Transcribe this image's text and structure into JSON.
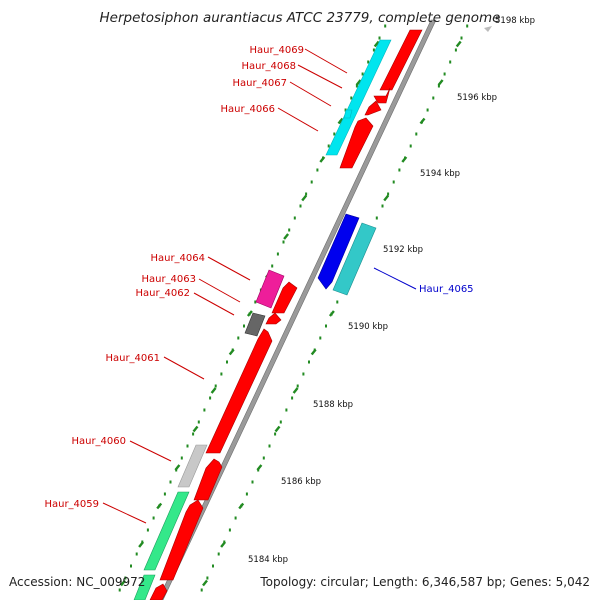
{
  "title": "Herpetosiphon aurantiacus ATCC 23779, complete genome",
  "accession": "Accession: NC_009972",
  "topology": "Topology: circular; Length: 6,346,587 bp; Genes: 5,042",
  "colors": {
    "backbone": "#999999",
    "forward_gene": "#ff0000",
    "reverse_gene": "#1a1aff",
    "tick": "#228b22",
    "label_forward": "#cc0000",
    "label_reverse": "#0000cc"
  },
  "scale_labels": [
    "5184 kbp",
    "5186 kbp",
    "5188 kbp",
    "5190 kbp",
    "5192 kbp",
    "5194 kbp",
    "5196 kbp",
    "5198 kbp"
  ],
  "gene_labels": [
    {
      "text": "Haur_4069",
      "color": "#cc0000"
    },
    {
      "text": "Haur_4068",
      "color": "#cc0000"
    },
    {
      "text": "Haur_4067",
      "color": "#cc0000"
    },
    {
      "text": "Haur_4066",
      "color": "#cc0000"
    },
    {
      "text": "Haur_4064",
      "color": "#cc0000"
    },
    {
      "text": "Haur_4063",
      "color": "#cc0000"
    },
    {
      "text": "Haur_4062",
      "color": "#cc0000"
    },
    {
      "text": "Haur_4061",
      "color": "#cc0000"
    },
    {
      "text": "Haur_4060",
      "color": "#cc0000"
    },
    {
      "text": "Haur_4059",
      "color": "#cc0000"
    },
    {
      "text": "Haur_4065",
      "color": "#0000cc"
    }
  ]
}
